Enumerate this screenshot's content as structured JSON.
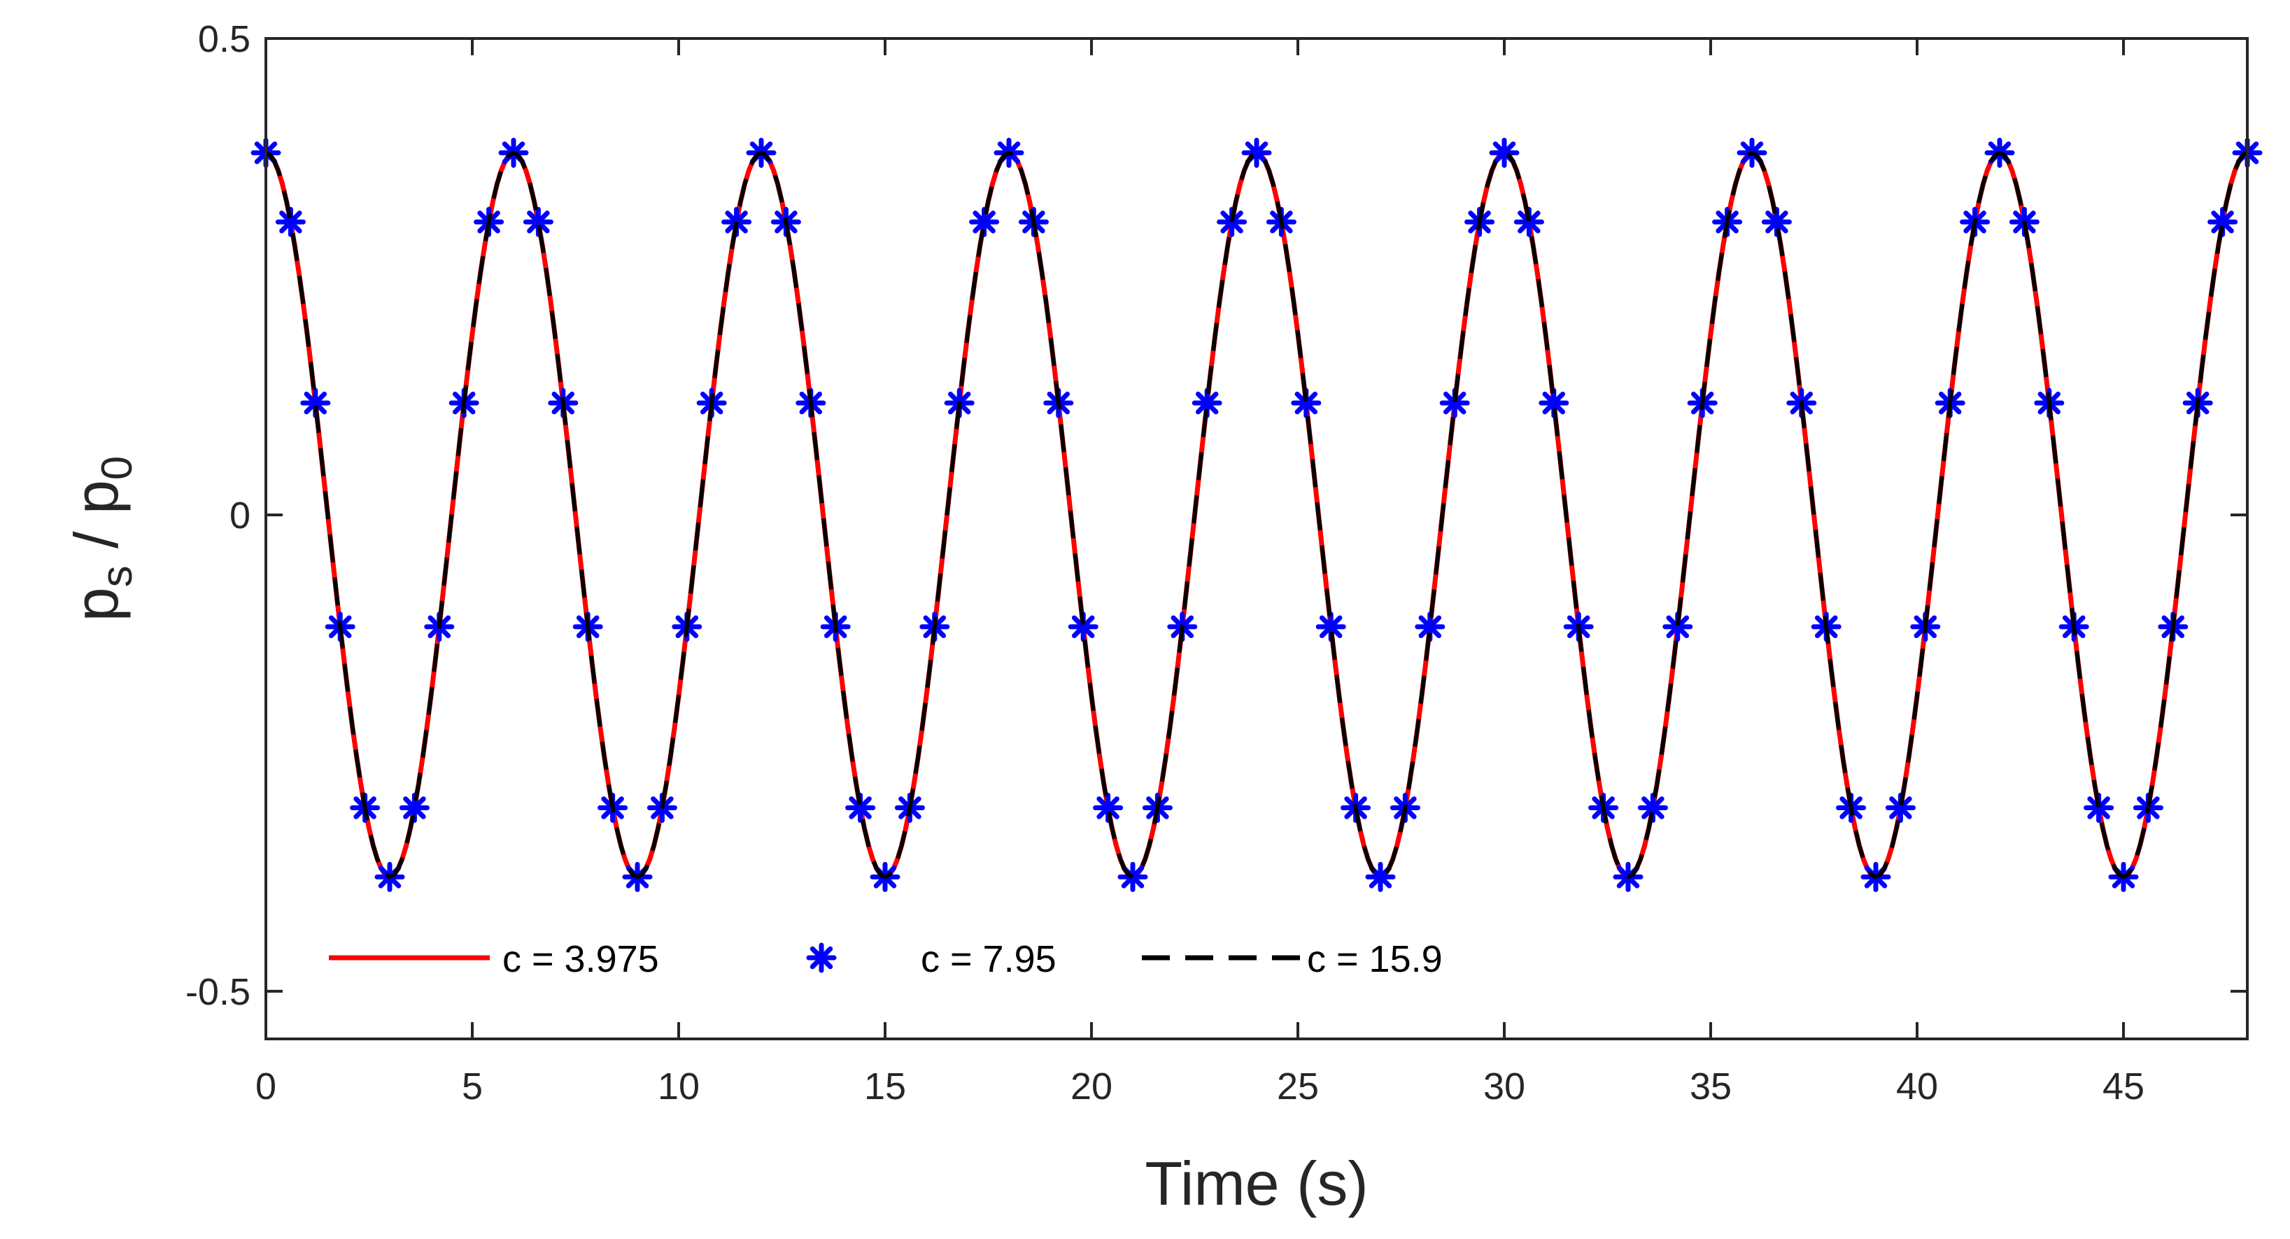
{
  "chart_data": {
    "type": "line",
    "xlabel": "Time (s)",
    "ylabel": {
      "base": "p",
      "sub1": "s",
      "mid": " / p",
      "sub2": "0"
    },
    "xlim": [
      0,
      48
    ],
    "ylim": [
      -0.55,
      0.5
    ],
    "xticks": [
      0,
      5,
      10,
      15,
      20,
      25,
      30,
      35,
      40,
      45
    ],
    "xtick_labels": [
      "0",
      "5",
      "10",
      "15",
      "20",
      "25",
      "30",
      "35",
      "40",
      "45"
    ],
    "yticks": [
      -0.5,
      0,
      0.5
    ],
    "ytick_labels": [
      "-0.5",
      "0",
      "0.5"
    ],
    "grid": false,
    "legend_position": "bottom-left",
    "series": [
      {
        "name": "c = 3.975",
        "style": "solid",
        "marker": "none",
        "color": "#ff0000",
        "function": "0.38*cos(2*pi*t/6)",
        "amplitude": 0.38,
        "period": 6,
        "t_range": [
          0,
          48
        ],
        "step": 0.1
      },
      {
        "name": "c = 7.95",
        "style": "none",
        "marker": "asterisk",
        "color": "#0000ff",
        "function": "0.38*cos(2*pi*t/6)",
        "amplitude": 0.38,
        "period": 6,
        "t_range": [
          0,
          48
        ],
        "step": 0.6
      },
      {
        "name": "c = 15.9",
        "style": "dashed",
        "marker": "none",
        "color": "#000000",
        "function": "0.38*cos(2*pi*t/6)",
        "amplitude": 0.38,
        "period": 6,
        "t_range": [
          0,
          48
        ],
        "step": 0.1
      }
    ]
  }
}
